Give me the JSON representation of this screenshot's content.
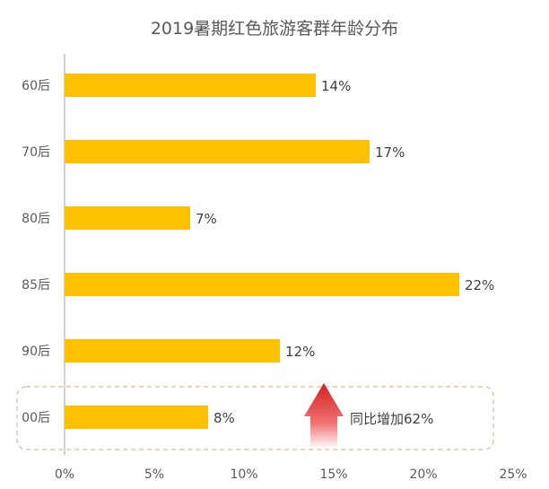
{
  "chart_data": {
    "type": "bar",
    "orientation": "horizontal",
    "title": "2019暑期红色旅游客群年龄分布",
    "categories": [
      "60后",
      "70后",
      "80后",
      "85后",
      "90后",
      "00后"
    ],
    "values": [
      14,
      17,
      7,
      22,
      12,
      8
    ],
    "value_labels": [
      "14%",
      "17%",
      "7%",
      "22%",
      "12%",
      "8%"
    ],
    "xlim": [
      0,
      25
    ],
    "xticks": [
      0,
      5,
      10,
      15,
      20,
      25
    ],
    "xtick_labels": [
      "0%",
      "5%",
      "10%",
      "15%",
      "20%",
      "25%"
    ],
    "xlabel": "",
    "ylabel": "",
    "grid": false,
    "bar_color": "#FFC000",
    "annotation": {
      "text": "同比增加62%",
      "target_category": "00后",
      "arrow_color": "#E03030",
      "box_border_color": "#D9B99B"
    }
  }
}
